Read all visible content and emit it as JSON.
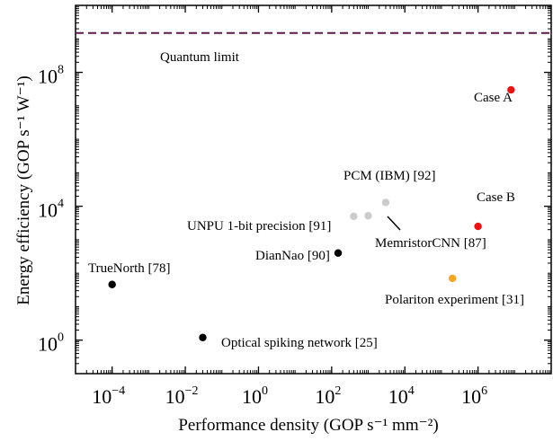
{
  "chart_data": {
    "type": "scatter",
    "title": "",
    "xlabel": "Performance density (GOP s⁻¹ mm⁻²)",
    "ylabel": "Energy efficiency (GOP s⁻¹ W⁻¹)",
    "x_scale": "log",
    "y_scale": "log",
    "xlim": [
      1e-05,
      100000000.0
    ],
    "ylim": [
      0.1,
      10000000000.0
    ],
    "x_tick_values": [
      0.0001,
      0.01,
      1,
      100.0,
      10000.0,
      1000000.0
    ],
    "x_tick_labels": [
      {
        "base": "10",
        "exp": "−4"
      },
      {
        "base": "10",
        "exp": "−2"
      },
      {
        "base": "10",
        "exp": "0"
      },
      {
        "base": "10",
        "exp": "2"
      },
      {
        "base": "10",
        "exp": "4"
      },
      {
        "base": "10",
        "exp": "6"
      }
    ],
    "y_tick_values": [
      1,
      10000.0,
      100000000.0
    ],
    "y_tick_labels": [
      {
        "base": "10",
        "exp": "0"
      },
      {
        "base": "10",
        "exp": "4"
      },
      {
        "base": "10",
        "exp": "8"
      }
    ],
    "grid": false,
    "reference_lines": [
      {
        "label": "Quantum limit",
        "y": 1500000000.0,
        "color": "#5c1a4a",
        "style": "dashed"
      }
    ],
    "points": [
      {
        "label": "TrueNorth [78]",
        "x": 0.0001,
        "y": 46,
        "color": "#000000"
      },
      {
        "label": "Optical spiking network [25]",
        "x": 0.03,
        "y": 1.2,
        "color": "#000000"
      },
      {
        "label": "DianNao [90]",
        "x": 150,
        "y": 400,
        "color": "#000000"
      },
      {
        "label": "UNPU 1-bit precision [91]",
        "x": 400,
        "y": 5000,
        "color": "#cccccc"
      },
      {
        "label": "MemristorCNN [87]",
        "x": 1000,
        "y": 5200,
        "color": "#cccccc"
      },
      {
        "label": "PCM (IBM) [92]",
        "x": 3000,
        "y": 13000,
        "color": "#cccccc"
      },
      {
        "label": "Polariton experiment [31]",
        "x": 200000,
        "y": 70,
        "color": "#f5a623"
      },
      {
        "label": "Case A",
        "x": 8000000,
        "y": 30000000,
        "color": "#ee1111"
      },
      {
        "label": "Case B",
        "x": 1000000,
        "y": 2500,
        "color": "#ee1111"
      }
    ]
  }
}
